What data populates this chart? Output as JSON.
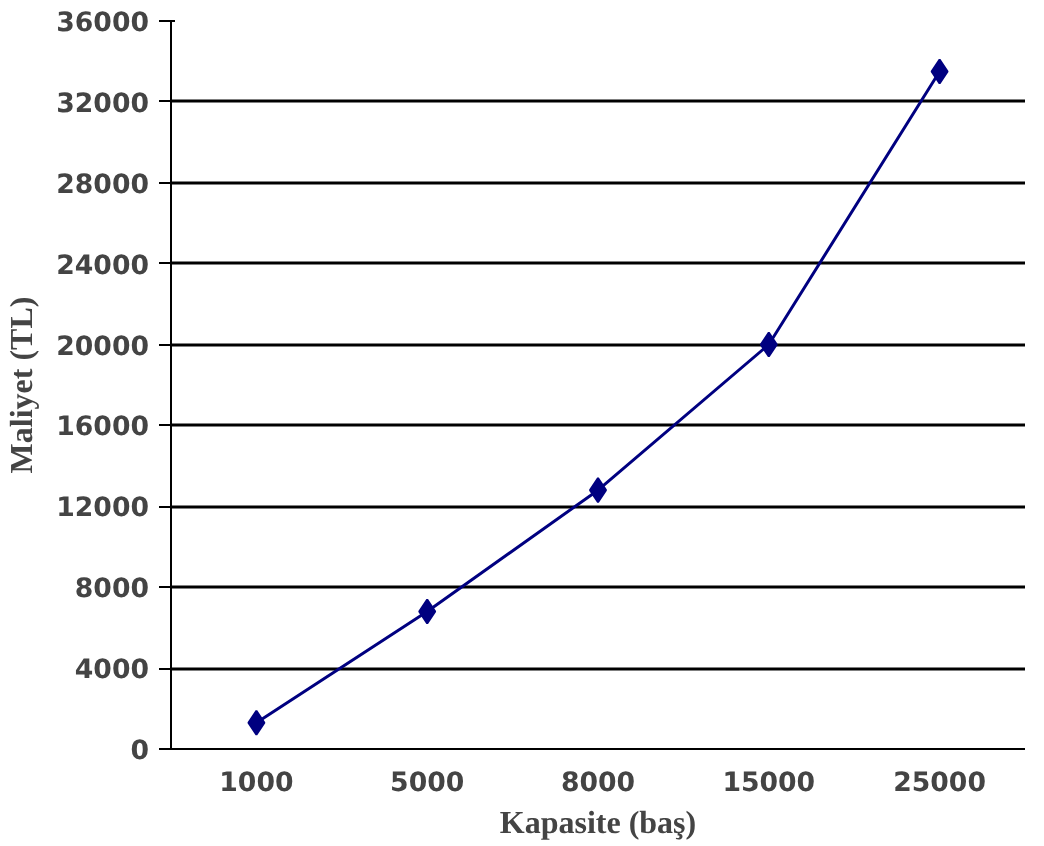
{
  "chart_data": {
    "type": "line",
    "xlabel": "Kapasite (baş)",
    "ylabel": "Maliyet (TL)",
    "categories": [
      "1000",
      "5000",
      "8000",
      "15000",
      "25000"
    ],
    "series": [
      {
        "color": "#000080",
        "values": [
          1300,
          6800,
          12800,
          20000,
          33500
        ]
      }
    ],
    "ylim": [
      0,
      36000
    ],
    "yticks": [
      0,
      4000,
      8000,
      12000,
      16000,
      20000,
      24000,
      28000,
      32000,
      36000
    ],
    "grid": "y",
    "marker": "diamond",
    "line_style": "solid"
  }
}
